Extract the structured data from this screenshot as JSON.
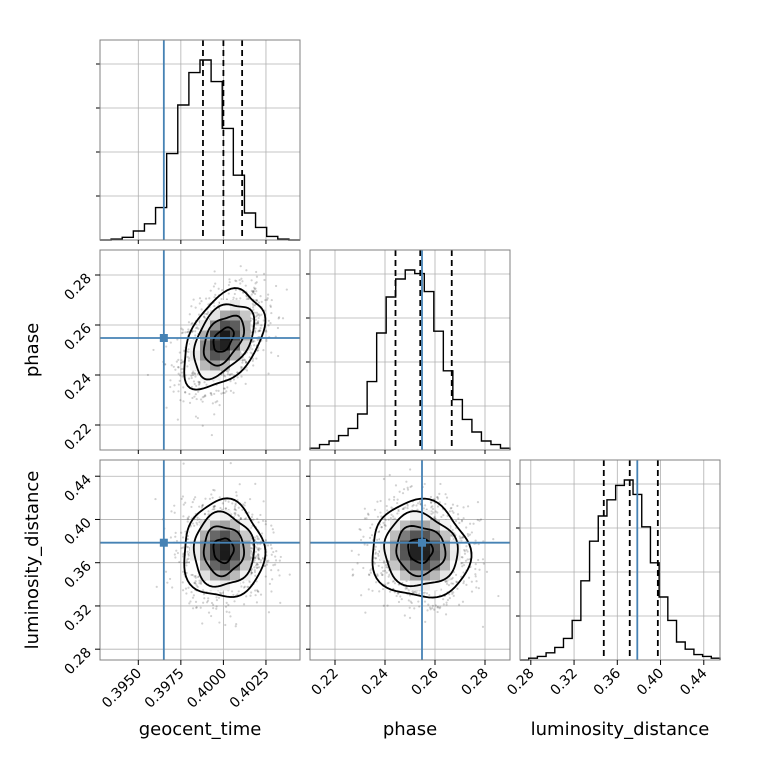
{
  "chart_data": {
    "type": "corner",
    "parameters": [
      {
        "name": "geocent_time",
        "range": [
          0.39275,
          0.4045
        ],
        "ticks": [
          0.395,
          0.3975,
          0.4,
          0.4025
        ],
        "tick_labels": [
          "0.3950",
          "0.3975",
          "0.4000",
          "0.4025"
        ],
        "truth": 0.3965,
        "quantiles": [
          0.3988,
          0.4,
          0.4011
        ],
        "median": 0.4,
        "sigma": 0.00118,
        "hist_heights": [
          0,
          0.005,
          0.015,
          0.05,
          0.09,
          0.18,
          0.48,
          0.75,
          0.93,
          1.0,
          0.88,
          0.62,
          0.36,
          0.15,
          0.07,
          0.02,
          0.005,
          0
        ]
      },
      {
        "name": "phase",
        "range": [
          0.21,
          0.29
        ],
        "ticks": [
          0.22,
          0.24,
          0.26,
          0.28
        ],
        "tick_labels": [
          "0.22",
          "0.24",
          "0.26",
          "0.28"
        ],
        "truth": 0.2548,
        "quantiles": [
          0.2442,
          0.2541,
          0.2667
        ],
        "median": 0.2541,
        "sigma": 0.0098,
        "hist_heights": [
          0.01,
          0.03,
          0.05,
          0.08,
          0.12,
          0.2,
          0.38,
          0.65,
          0.85,
          0.95,
          1.0,
          0.98,
          0.88,
          0.66,
          0.44,
          0.28,
          0.17,
          0.1,
          0.05,
          0.03,
          0.01
        ]
      },
      {
        "name": "luminosity_distance",
        "range": [
          0.27,
          0.455
        ],
        "ticks": [
          0.28,
          0.32,
          0.36,
          0.4,
          0.44
        ],
        "tick_labels": [
          "0.28",
          "0.32",
          "0.36",
          "0.40",
          "0.44"
        ],
        "truth": 0.3785,
        "quantiles": [
          0.3475,
          0.3715,
          0.3975
        ],
        "median": 0.3715,
        "sigma": 0.0225,
        "hist_heights": [
          0,
          0.01,
          0.02,
          0.04,
          0.07,
          0.12,
          0.22,
          0.44,
          0.66,
          0.8,
          0.89,
          0.97,
          1.0,
          0.92,
          0.74,
          0.54,
          0.35,
          0.22,
          0.1,
          0.06,
          0.03,
          0.02,
          0.01
        ]
      }
    ],
    "correlations": {
      "1_0": 0.42,
      "2_0": 0.0,
      "2_1": -0.05
    },
    "truth_color": "#4682b4",
    "contour_levels": [
      0.5,
      1.0,
      1.5,
      2.0
    ],
    "grid": true,
    "axis_labels": [
      "geocent_time",
      "phase",
      "luminosity_distance"
    ]
  },
  "colors": {
    "truth": "#4682b4",
    "hist": "#000000",
    "grid": "#b0b0b0",
    "axes": "#808080"
  }
}
